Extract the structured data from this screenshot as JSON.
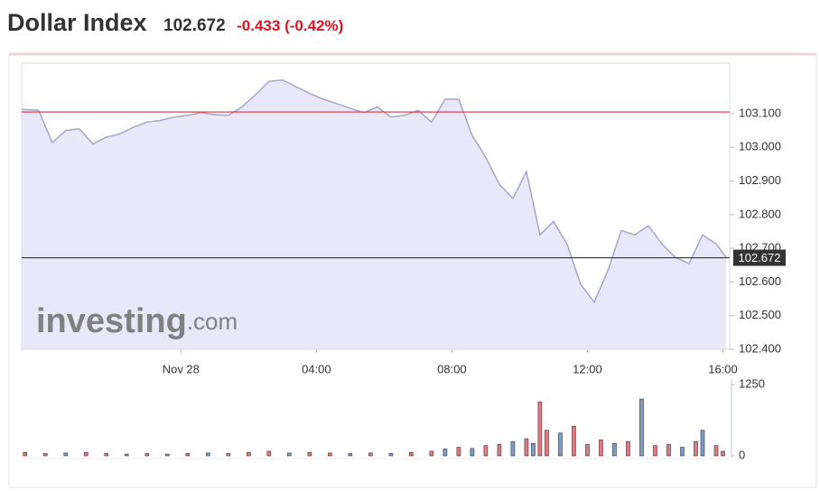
{
  "chart_data": {
    "type": "area",
    "title": "Dollar Index",
    "price": "102.672",
    "change": "-0.433 (-0.42%)",
    "watermark_brand": "investing",
    "watermark_suffix": ".com",
    "line_color": "#a4a4cc",
    "fill_color": "#e8e8f8",
    "xlim": [
      -4.7,
      16.2
    ],
    "xticks": [
      {
        "value": 0,
        "label": "Nov 28"
      },
      {
        "value": 4,
        "label": "04:00"
      },
      {
        "value": 8,
        "label": "08:00"
      },
      {
        "value": 12,
        "label": "12:00"
      },
      {
        "value": 16,
        "label": "16:00"
      }
    ],
    "ylim": [
      102.4,
      103.25
    ],
    "yticks": [
      {
        "value": 102.4,
        "label": "102.400"
      },
      {
        "value": 102.5,
        "label": "102.500"
      },
      {
        "value": 102.6,
        "label": "102.600"
      },
      {
        "value": 102.7,
        "label": "102.700"
      },
      {
        "value": 102.8,
        "label": "102.800"
      },
      {
        "value": 102.9,
        "label": "102.900"
      },
      {
        "value": 103.0,
        "label": "103.000"
      },
      {
        "value": 103.1,
        "label": "103.100"
      }
    ],
    "x": [
      -4.7,
      -4.2,
      -3.8,
      -3.4,
      -3.0,
      -2.6,
      -2.2,
      -1.8,
      -1.4,
      -1.0,
      -0.6,
      -0.2,
      0.2,
      0.6,
      1.0,
      1.4,
      1.8,
      2.2,
      2.6,
      3.0,
      3.4,
      3.8,
      4.2,
      4.6,
      5.0,
      5.4,
      5.8,
      6.2,
      6.6,
      7.0,
      7.4,
      7.8,
      8.2,
      8.6,
      9.0,
      9.4,
      9.8,
      10.2,
      10.6,
      11.0,
      11.4,
      11.8,
      12.2,
      12.6,
      13.0,
      13.4,
      13.8,
      14.2,
      14.6,
      15.0,
      15.4,
      15.8,
      16.1
    ],
    "values": [
      103.113,
      103.11,
      103.014,
      103.05,
      103.055,
      103.01,
      103.03,
      103.04,
      103.06,
      103.075,
      103.08,
      103.09,
      103.095,
      103.103,
      103.097,
      103.095,
      103.12,
      103.156,
      103.196,
      103.2,
      103.18,
      103.16,
      103.143,
      103.13,
      103.116,
      103.103,
      103.12,
      103.09,
      103.095,
      103.11,
      103.075,
      103.143,
      103.143,
      103.035,
      102.97,
      102.89,
      102.848,
      102.928,
      102.74,
      102.78,
      102.713,
      102.593,
      102.54,
      102.633,
      102.753,
      102.74,
      102.767,
      102.713,
      102.673,
      102.655,
      102.74,
      102.713,
      102.673
    ],
    "reference_lines": [
      {
        "value": 103.105,
        "color": "#e0303a"
      },
      {
        "value": 102.672,
        "color": "#333333",
        "label": "102.672"
      }
    ],
    "volume": {
      "y2lim": [
        0,
        1350
      ],
      "y2ticks": [
        0,
        1250
      ],
      "x": [
        -4.6,
        -4.0,
        -3.4,
        -2.8,
        -2.2,
        -1.6,
        -1.0,
        -0.4,
        0.2,
        0.8,
        1.4,
        2.0,
        2.6,
        3.2,
        3.8,
        4.4,
        5.0,
        5.6,
        6.2,
        6.8,
        7.4,
        7.8,
        8.2,
        8.6,
        9.0,
        9.4,
        9.8,
        10.2,
        10.4,
        10.6,
        10.8,
        11.2,
        11.6,
        12.0,
        12.4,
        12.8,
        13.2,
        13.6,
        14.0,
        14.4,
        14.8,
        15.2,
        15.4,
        15.8,
        16.0
      ],
      "values": [
        60,
        40,
        50,
        60,
        40,
        30,
        40,
        30,
        40,
        50,
        40,
        60,
        80,
        50,
        60,
        50,
        40,
        50,
        40,
        60,
        80,
        120,
        150,
        130,
        180,
        200,
        250,
        300,
        220,
        950,
        450,
        400,
        520,
        200,
        280,
        220,
        250,
        1000,
        180,
        200,
        150,
        250,
        450,
        180,
        80
      ],
      "colors": [
        "#e07a80",
        "#e07a80",
        "#7a9ccc",
        "#e07a80",
        "#e07a80",
        "#7a9ccc",
        "#e07a80",
        "#7a9ccc",
        "#e07a80",
        "#7a9ccc",
        "#e07a80",
        "#e07a80",
        "#e07a80",
        "#7a9ccc",
        "#e07a80",
        "#e07a80",
        "#7a9ccc",
        "#e07a80",
        "#7a9ccc",
        "#e07a80",
        "#e07a80",
        "#7a9ccc",
        "#e07a80",
        "#7a9ccc",
        "#e07a80",
        "#e07a80",
        "#7a9ccc",
        "#e07a80",
        "#7a9ccc",
        "#e07a80",
        "#e07a80",
        "#7a9ccc",
        "#e07a80",
        "#e07a80",
        "#e07a80",
        "#7a9ccc",
        "#e07a80",
        "#7a9ccc",
        "#e07a80",
        "#e07a80",
        "#7a9ccc",
        "#e07a80",
        "#7a9ccc",
        "#e07a80",
        "#e07a80"
      ]
    }
  }
}
